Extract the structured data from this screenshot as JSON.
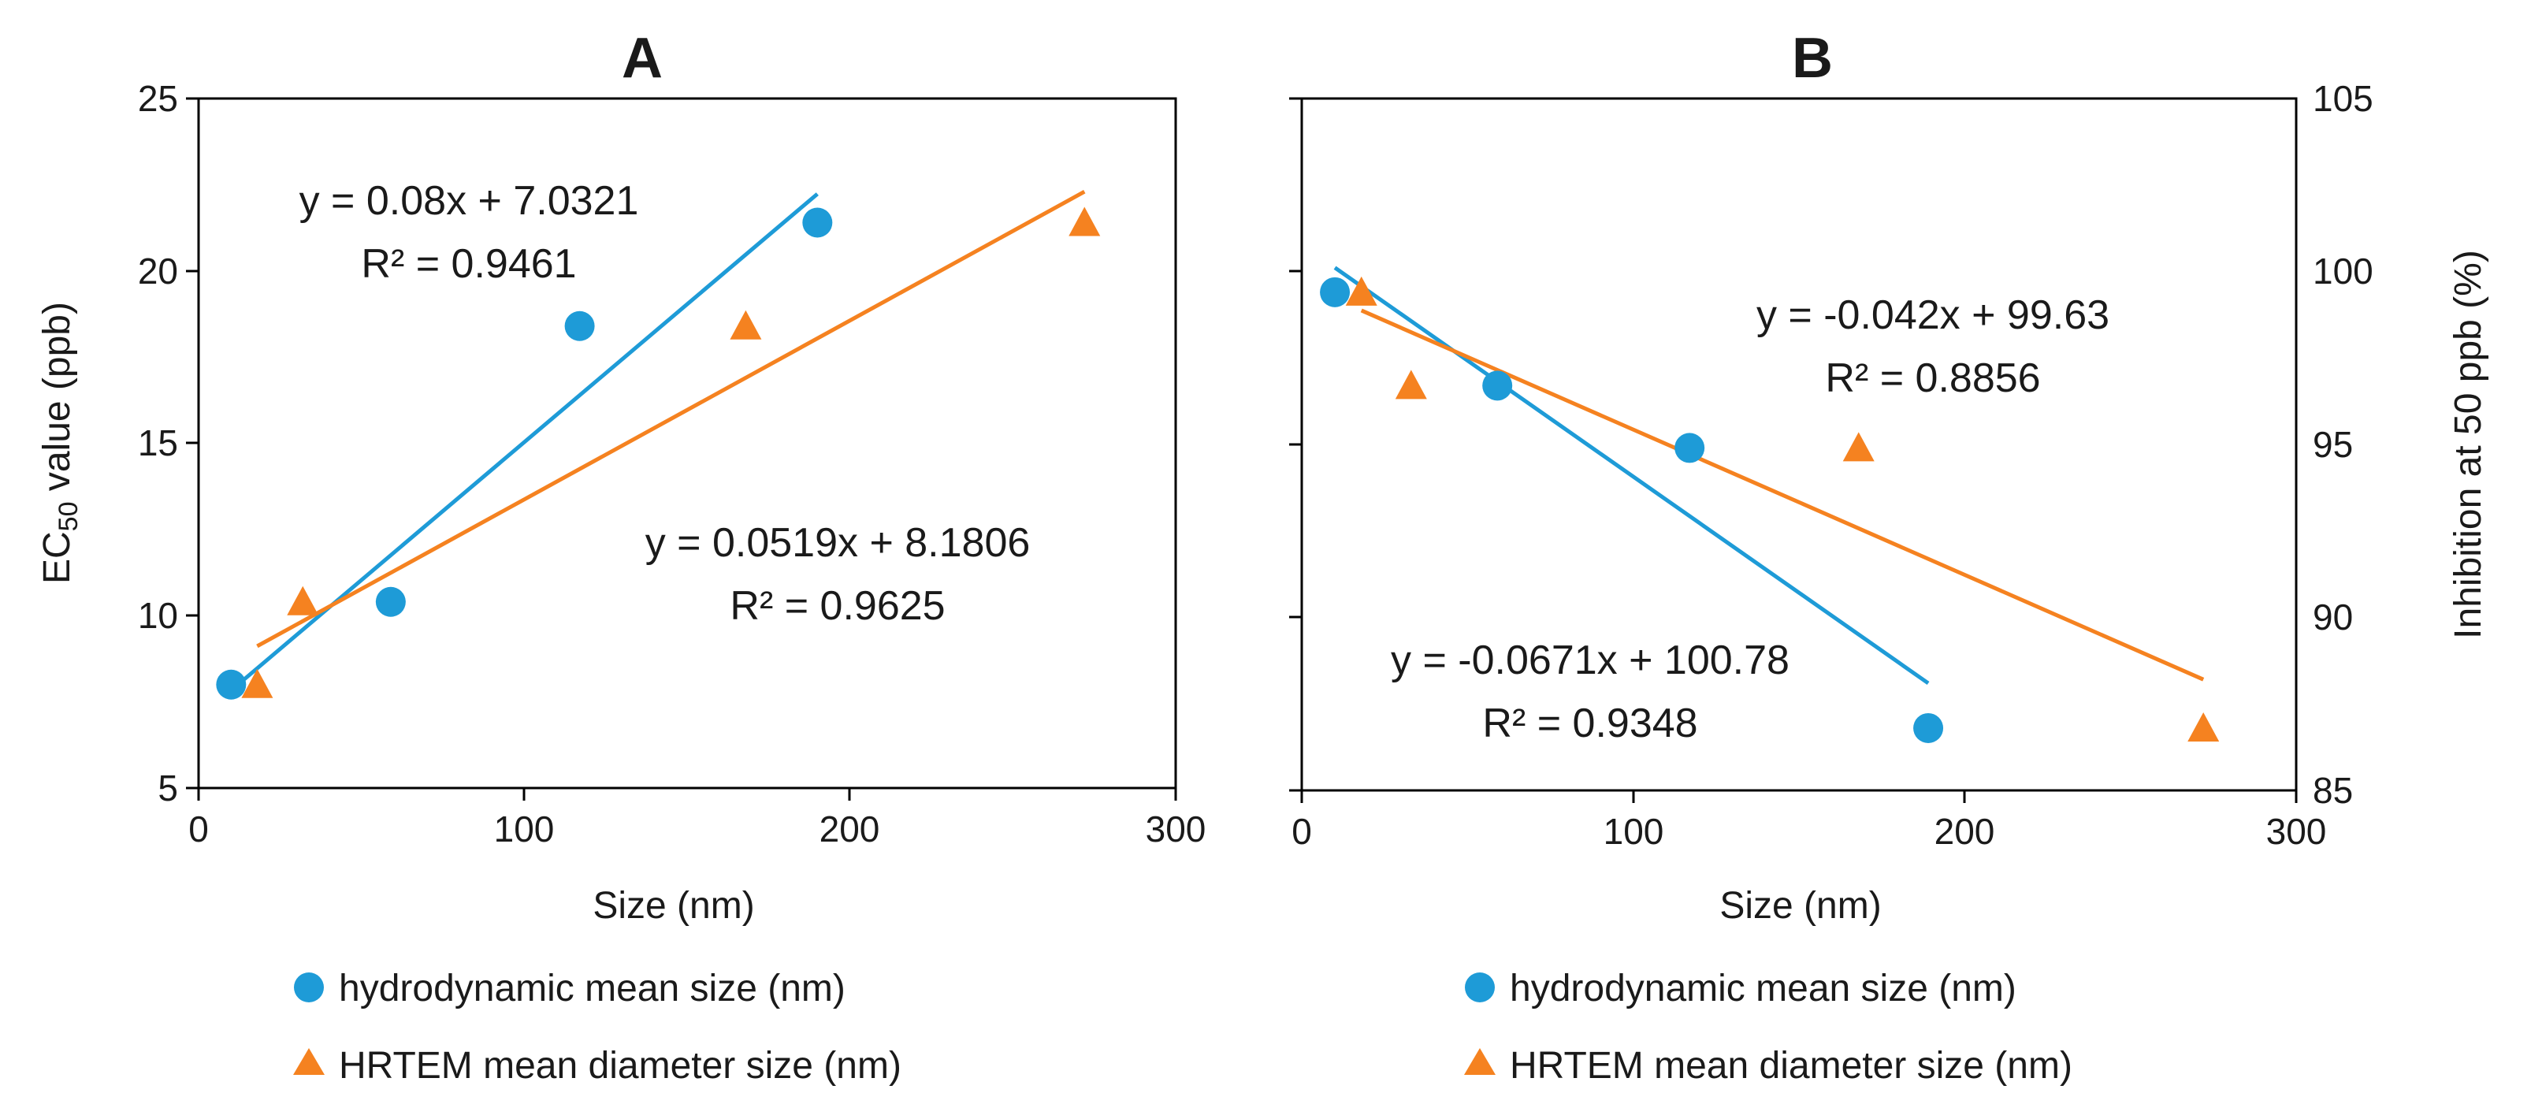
{
  "chart_data": [
    {
      "type": "scatter",
      "title": "A",
      "xlabel": "Size (nm)",
      "ylabel_prefix": "EC",
      "ylabel_sub": "50",
      "ylabel_suffix": " value (ppb)",
      "xlim": [
        0,
        300
      ],
      "ylim": [
        5,
        25
      ],
      "xticks": [
        "0",
        "100",
        "200",
        "300"
      ],
      "yticks": [
        "5",
        "10",
        "15",
        "20",
        "25"
      ],
      "series": [
        {
          "name": "hydrodynamic mean size (nm)",
          "marker": "circle",
          "color": "#1e9bd7",
          "points": [
            [
              10,
              8.0
            ],
            [
              59,
              10.4
            ],
            [
              117,
              18.4
            ],
            [
              190,
              21.4
            ]
          ],
          "trend": {
            "slope": 0.08,
            "intercept": 7.0321,
            "x_range": [
              10,
              190
            ]
          },
          "equation": "y = 0.08x + 7.0321",
          "r2": "R² = 0.9461"
        },
        {
          "name": "HRTEM mean diameter size (nm)",
          "marker": "triangle",
          "color": "#f58220",
          "points": [
            [
              18,
              8.0
            ],
            [
              32,
              10.4
            ],
            [
              168,
              18.4
            ],
            [
              272,
              21.4
            ]
          ],
          "trend": {
            "slope": 0.0519,
            "intercept": 8.1806,
            "x_range": [
              18,
              272
            ]
          },
          "equation": "y = 0.0519x + 8.1806",
          "r2": "R² = 0.9625"
        }
      ],
      "legend": "bottom"
    },
    {
      "type": "scatter",
      "title": "B",
      "xlabel": "Size (nm)",
      "ylabel": "Inhibition at 50 ppb (%)",
      "xlim": [
        0,
        300
      ],
      "ylim": [
        85,
        105
      ],
      "xticks": [
        "0",
        "100",
        "200",
        "300"
      ],
      "yticks": [
        "85",
        "90",
        "95",
        "100",
        "105"
      ],
      "yticks_left_unlabeled": true,
      "series": [
        {
          "name": "hydrodynamic mean size (nm)",
          "marker": "circle",
          "color": "#1e9bd7",
          "points": [
            [
              10,
              99.4
            ],
            [
              59,
              96.7
            ],
            [
              117,
              94.9
            ],
            [
              189,
              86.8
            ]
          ],
          "trend": {
            "slope": -0.0671,
            "intercept": 100.78,
            "x_range": [
              10,
              189
            ]
          },
          "equation": "y = -0.0671x + 100.78",
          "r2": "R² = 0.9348"
        },
        {
          "name": "HRTEM mean diameter size (nm)",
          "marker": "triangle",
          "color": "#f58220",
          "points": [
            [
              18,
              99.4
            ],
            [
              33,
              96.7
            ],
            [
              168,
              94.9
            ],
            [
              272,
              86.8
            ]
          ],
          "trend": {
            "slope": -0.042,
            "intercept": 99.63,
            "x_range": [
              18,
              272
            ]
          },
          "equation": "y = -0.042x + 99.63",
          "r2": "R² = 0.8856"
        }
      ],
      "legend": "bottom"
    }
  ]
}
